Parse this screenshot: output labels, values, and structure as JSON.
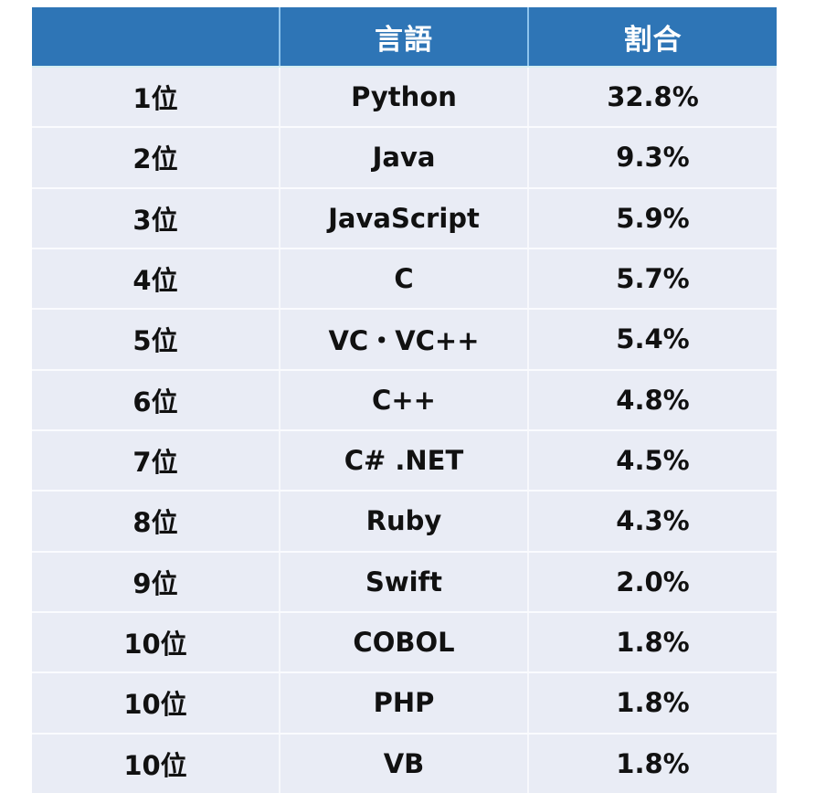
{
  "table": {
    "headers": [
      "",
      "言語",
      "割合"
    ],
    "rows": [
      {
        "rank": "1位",
        "language": "Python",
        "share": "32.8%"
      },
      {
        "rank": "2位",
        "language": "Java",
        "share": "9.3%"
      },
      {
        "rank": "3位",
        "language": "JavaScript",
        "share": "5.9%"
      },
      {
        "rank": "4位",
        "language": "C",
        "share": "5.7%"
      },
      {
        "rank": "5位",
        "language": "VC・VC++",
        "share": "5.4%"
      },
      {
        "rank": "6位",
        "language": "C++",
        "share": "4.8%"
      },
      {
        "rank": "7位",
        "language": "C# .NET",
        "share": "4.5%"
      },
      {
        "rank": "8位",
        "language": "Ruby",
        "share": "4.3%"
      },
      {
        "rank": "9位",
        "language": "Swift",
        "share": "2.0%"
      },
      {
        "rank": "10位",
        "language": "COBOL",
        "share": "1.8%"
      },
      {
        "rank": "10位",
        "language": "PHP",
        "share": "1.8%"
      },
      {
        "rank": "10位",
        "language": "VB",
        "share": "1.8%"
      }
    ]
  },
  "colors": {
    "header_bg": "#2E75B6",
    "header_text": "#FFFFFF",
    "body_bg": "#E9ECF5",
    "body_text": "#111111"
  }
}
